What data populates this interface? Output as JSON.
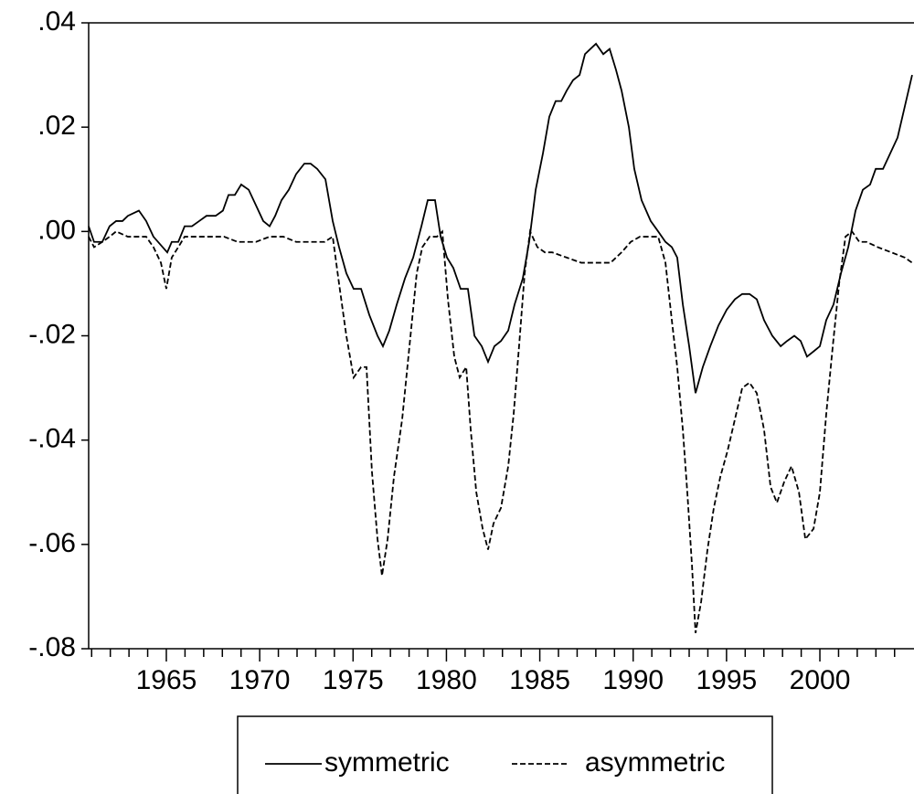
{
  "chart_data": {
    "type": "line",
    "xlim": [
      1960.84,
      2005.04
    ],
    "ylim": [
      -0.08,
      0.04
    ],
    "xticks": [
      1965,
      1970,
      1975,
      1980,
      1985,
      1990,
      1995,
      2000
    ],
    "xminorticks": [
      1961,
      1962,
      1963,
      1964,
      1966,
      1967,
      1968,
      1969,
      1971,
      1972,
      1973,
      1974,
      1976,
      1977,
      1978,
      1979,
      1981,
      1982,
      1983,
      1984,
      1986,
      1987,
      1988,
      1989,
      1991,
      1992,
      1993,
      1994,
      1996,
      1997,
      1998,
      1999,
      2001,
      2002,
      2003,
      2004
    ],
    "yticks": [
      {
        "value": 0.04,
        "label": ".04"
      },
      {
        "value": 0.02,
        "label": ".02"
      },
      {
        "value": 0,
        "label": ".00"
      },
      {
        "value": -0.02,
        "label": "-.02"
      },
      {
        "value": -0.04,
        "label": "-.04"
      },
      {
        "value": -0.06,
        "label": "-.06"
      },
      {
        "value": -0.08,
        "label": "-.08"
      }
    ],
    "series": [
      {
        "name": "symmetric",
        "color": "#000000",
        "dash": false,
        "x": [
          1960.84,
          1961.13,
          1961.57,
          1961.96,
          1962.31,
          1962.65,
          1962.94,
          1963.53,
          1963.92,
          1964.31,
          1964.8,
          1965.05,
          1965.29,
          1965.64,
          1965.98,
          1966.37,
          1966.76,
          1967.15,
          1967.64,
          1968.03,
          1968.33,
          1968.67,
          1969.01,
          1969.41,
          1969.8,
          1970.19,
          1970.53,
          1970.83,
          1971.17,
          1971.56,
          1971.95,
          1972.39,
          1972.73,
          1973.08,
          1973.52,
          1973.91,
          1974.25,
          1974.64,
          1975.03,
          1975.43,
          1975.87,
          1976.31,
          1976.6,
          1976.94,
          1977.34,
          1977.78,
          1978.22,
          1978.66,
          1979.0,
          1979.39,
          1979.69,
          1980.03,
          1980.37,
          1980.76,
          1981.15,
          1981.5,
          1981.89,
          1982.23,
          1982.57,
          1982.92,
          1983.31,
          1983.65,
          1984.09,
          1984.43,
          1984.78,
          1985.17,
          1985.51,
          1985.85,
          1986.15,
          1986.44,
          1986.78,
          1987.13,
          1987.42,
          1987.71,
          1988.01,
          1988.4,
          1988.74,
          1989.08,
          1989.38,
          1989.77,
          1990.06,
          1990.45,
          1990.94,
          1991.34,
          1991.73,
          1992.07,
          1992.36,
          1992.66,
          1993.0,
          1993.34,
          1993.73,
          1994.13,
          1994.57,
          1995.01,
          1995.45,
          1995.84,
          1996.23,
          1996.62,
          1997.01,
          1997.45,
          1997.9,
          1998.24,
          1998.63,
          1998.97,
          1999.31,
          1999.66,
          2000.0,
          2000.34,
          2000.73,
          2001.13,
          2001.52,
          2001.91,
          2002.3,
          2002.69,
          2002.99,
          2003.38,
          2003.77,
          2004.16,
          2004.55,
          2004.94
        ],
        "values": [
          0.001,
          -0.002,
          -0.002,
          0.001,
          0.002,
          0.002,
          0.003,
          0.004,
          0.002,
          -0.001,
          -0.003,
          -0.004,
          -0.002,
          -0.002,
          0.001,
          0.001,
          0.002,
          0.003,
          0.003,
          0.004,
          0.007,
          0.007,
          0.009,
          0.008,
          0.005,
          0.002,
          0.001,
          0.003,
          0.006,
          0.008,
          0.011,
          0.013,
          0.013,
          0.012,
          0.01,
          0.002,
          -0.003,
          -0.008,
          -0.011,
          -0.011,
          -0.016,
          -0.02,
          -0.022,
          -0.019,
          -0.014,
          -0.009,
          -0.005,
          0.001,
          0.006,
          0.006,
          -0.001,
          -0.005,
          -0.007,
          -0.011,
          -0.011,
          -0.02,
          -0.022,
          -0.025,
          -0.022,
          -0.021,
          -0.019,
          -0.014,
          -0.009,
          -0.002,
          0.008,
          0.015,
          0.022,
          0.025,
          0.025,
          0.027,
          0.029,
          0.03,
          0.034,
          0.035,
          0.036,
          0.034,
          0.035,
          0.031,
          0.027,
          0.02,
          0.012,
          0.006,
          0.002,
          0.0,
          -0.002,
          -0.003,
          -0.005,
          -0.014,
          -0.022,
          -0.031,
          -0.026,
          -0.022,
          -0.018,
          -0.015,
          -0.013,
          -0.012,
          -0.012,
          -0.013,
          -0.017,
          -0.02,
          -0.022,
          -0.021,
          -0.02,
          -0.021,
          -0.024,
          -0.023,
          -0.022,
          -0.017,
          -0.014,
          -0.008,
          -0.003,
          0.004,
          0.008,
          0.009,
          0.012,
          0.012,
          0.015,
          0.018,
          0.024,
          0.03
        ]
      },
      {
        "name": "asymmetric",
        "color": "#000000",
        "dash": true,
        "x": [
          1960.84,
          1961.13,
          1961.57,
          1961.96,
          1962.31,
          1962.94,
          1963.53,
          1963.92,
          1964.31,
          1964.71,
          1965.0,
          1965.29,
          1965.64,
          1965.98,
          1966.62,
          1967.35,
          1968.09,
          1968.82,
          1969.8,
          1970.53,
          1971.27,
          1971.95,
          1972.73,
          1973.47,
          1973.91,
          1974.25,
          1974.64,
          1975.03,
          1975.43,
          1975.72,
          1976.01,
          1976.31,
          1976.55,
          1976.85,
          1977.19,
          1977.63,
          1978.02,
          1978.41,
          1978.71,
          1979.1,
          1979.49,
          1979.78,
          1980.08,
          1980.42,
          1980.71,
          1981.06,
          1981.3,
          1981.6,
          1981.94,
          1982.23,
          1982.52,
          1982.92,
          1983.31,
          1983.6,
          1983.89,
          1984.19,
          1984.48,
          1984.87,
          1985.27,
          1985.66,
          1986.44,
          1987.22,
          1988.01,
          1988.79,
          1989.38,
          1989.87,
          1990.36,
          1990.94,
          1991.34,
          1991.73,
          1992.07,
          1992.36,
          1992.66,
          1992.9,
          1993.15,
          1993.34,
          1993.64,
          1993.98,
          1994.32,
          1994.67,
          1995.06,
          1995.45,
          1995.84,
          1996.23,
          1996.62,
          1997.01,
          1997.36,
          1997.7,
          1998.09,
          1998.48,
          1998.88,
          1999.22,
          1999.66,
          2000.0,
          2000.34,
          2000.69,
          2001.03,
          2001.37,
          2001.72,
          2002.11,
          2002.5,
          2003.09,
          2003.82,
          2004.55,
          2004.94
        ],
        "values": [
          -0.001,
          -0.003,
          -0.002,
          -0.001,
          0.0,
          -0.001,
          -0.001,
          -0.001,
          -0.003,
          -0.006,
          -0.011,
          -0.005,
          -0.003,
          -0.001,
          -0.001,
          -0.001,
          -0.001,
          -0.002,
          -0.002,
          -0.001,
          -0.001,
          -0.002,
          -0.002,
          -0.002,
          -0.001,
          -0.01,
          -0.02,
          -0.028,
          -0.026,
          -0.026,
          -0.046,
          -0.059,
          -0.066,
          -0.059,
          -0.047,
          -0.036,
          -0.022,
          -0.008,
          -0.003,
          -0.001,
          -0.001,
          0.0,
          -0.013,
          -0.024,
          -0.028,
          -0.026,
          -0.038,
          -0.05,
          -0.057,
          -0.061,
          -0.056,
          -0.053,
          -0.045,
          -0.035,
          -0.022,
          -0.008,
          0.0,
          -0.003,
          -0.004,
          -0.004,
          -0.005,
          -0.006,
          -0.006,
          -0.006,
          -0.004,
          -0.002,
          -0.001,
          -0.001,
          -0.001,
          -0.006,
          -0.017,
          -0.026,
          -0.038,
          -0.05,
          -0.064,
          -0.077,
          -0.071,
          -0.061,
          -0.053,
          -0.047,
          -0.042,
          -0.036,
          -0.03,
          -0.029,
          -0.031,
          -0.038,
          -0.049,
          -0.052,
          -0.048,
          -0.045,
          -0.05,
          -0.059,
          -0.057,
          -0.05,
          -0.035,
          -0.022,
          -0.01,
          -0.001,
          0.0,
          -0.002,
          -0.002,
          -0.003,
          -0.004,
          -0.005,
          -0.006
        ]
      }
    ]
  }
}
